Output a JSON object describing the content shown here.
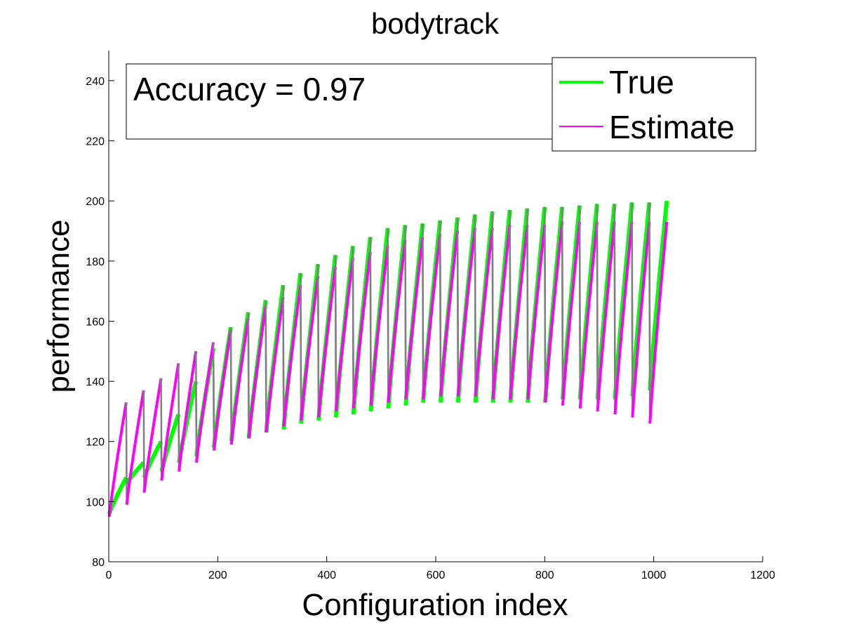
{
  "chart_data": {
    "type": "line",
    "title": "bodytrack",
    "xlabel": "Configuration index",
    "ylabel": "performance",
    "xlim": [
      0,
      1200
    ],
    "ylim": [
      80,
      250
    ],
    "xticks": [
      0,
      200,
      400,
      600,
      800,
      1000,
      1200
    ],
    "yticks": [
      80,
      100,
      120,
      140,
      160,
      180,
      200,
      220,
      240
    ],
    "grid": false,
    "legend": {
      "placement": "top-right",
      "entries": [
        "True",
        "Estimate"
      ]
    },
    "annotation": "Accuracy = 0.97",
    "block_length": 32,
    "x_range": [
      1,
      1024
    ],
    "series": [
      {
        "name": "True",
        "color": "#00ff00",
        "block_start_values": [
          96,
          106,
          108,
          110,
          113,
          115,
          118,
          120,
          121,
          123,
          124,
          126,
          127,
          128,
          129,
          130,
          131,
          132,
          133,
          133,
          133,
          133,
          133,
          133,
          133,
          133,
          134,
          134,
          134,
          134,
          135,
          137
        ],
        "block_end_values": [
          108,
          113,
          120,
          129,
          140,
          151,
          158,
          163,
          167,
          172,
          176,
          179,
          182,
          185,
          188,
          191,
          192,
          192.5,
          193.5,
          194.5,
          195.5,
          196.5,
          197,
          197.5,
          198,
          198,
          198.5,
          199,
          199,
          199.5,
          199.5,
          200
        ]
      },
      {
        "name": "Estimate",
        "color": "#ff00ff",
        "block_start_values": [
          95,
          99,
          103,
          107,
          110,
          113,
          117,
          119,
          121,
          123,
          125,
          127,
          128,
          130,
          131,
          132,
          133,
          134,
          134,
          135,
          135,
          135,
          134,
          134,
          134,
          133,
          132,
          131,
          130,
          129,
          128,
          126
        ],
        "block_end_values": [
          133,
          137,
          141,
          146,
          150,
          153,
          157,
          161,
          165,
          168,
          172,
          175,
          178,
          181,
          183,
          185,
          187,
          188,
          189,
          190,
          191,
          191,
          192,
          192,
          192,
          193,
          193,
          193,
          193,
          193,
          193,
          193
        ]
      }
    ]
  },
  "colors": {
    "true_line": "#00ff00",
    "estimate_line": "#ff00ff",
    "overlap_line": "#7f7f7f",
    "axes": "#000000"
  }
}
